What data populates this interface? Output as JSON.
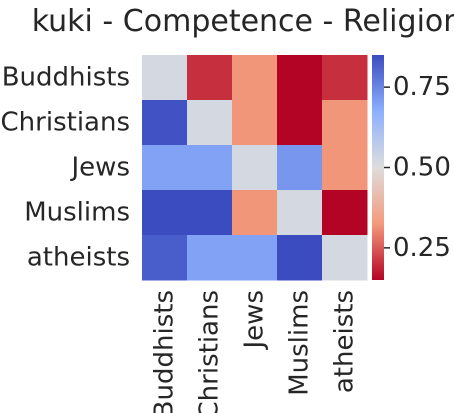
{
  "chart_data": {
    "type": "heatmap",
    "title": "kuki - Competence - Religion",
    "row_labels": [
      "Buddhists",
      "Christians",
      "Jews",
      "Muslims",
      "atheists"
    ],
    "col_labels": [
      "Buddhists",
      "Christians",
      "Jews",
      "Muslims",
      "atheists"
    ],
    "values": [
      [
        0.52,
        0.2,
        0.32,
        0.15,
        0.2
      ],
      [
        0.84,
        0.52,
        0.32,
        0.15,
        0.32
      ],
      [
        0.7,
        0.7,
        0.52,
        0.72,
        0.32
      ],
      [
        0.86,
        0.86,
        0.32,
        0.52,
        0.15
      ],
      [
        0.82,
        0.7,
        0.7,
        0.86,
        0.52
      ]
    ],
    "colormap": "coolwarm (reversed: high = blue, low = red)",
    "vmin": 0.15,
    "vmax": 0.85,
    "colorbar_ticks": [
      "0.25",
      "0.50",
      "0.75"
    ],
    "colorbar_tick_values": [
      0.25,
      0.5,
      0.75
    ],
    "colors": {
      "high": "#3b4cc0",
      "mid": "#dddddd",
      "low": "#b40426",
      "text": "#262626"
    }
  }
}
